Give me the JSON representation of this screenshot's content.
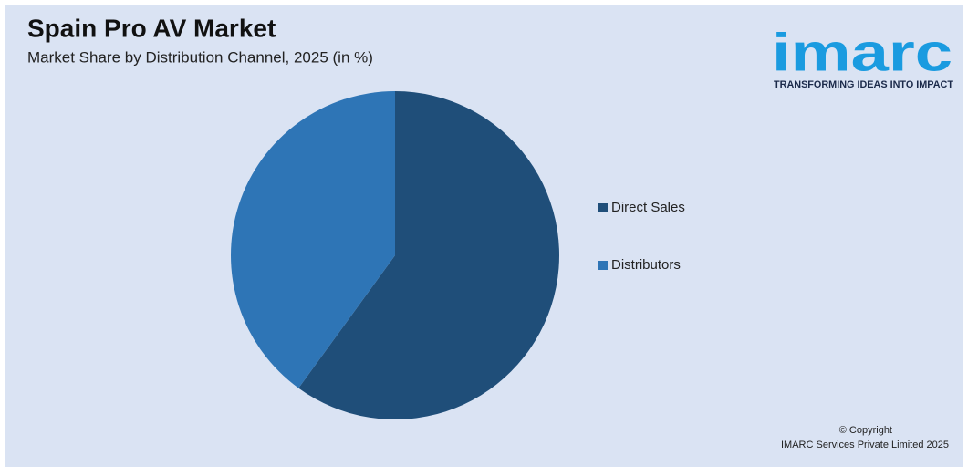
{
  "chart_data": {
    "type": "pie",
    "title": "Spain Pro AV Market",
    "subtitle": "Market Share by Distribution Channel, 2025 (in %)",
    "categories": [
      "Direct Sales",
      "Distributors"
    ],
    "values": [
      60,
      40
    ],
    "colors": [
      "#1f4e79",
      "#2e75b6"
    ],
    "legend": "right"
  },
  "logo": {
    "name": "imarc",
    "tagline": "TRANSFORMING IDEAS INTO IMPACT"
  },
  "footer": {
    "copyright": "© Copyright",
    "company": "IMARC Services Private Limited 2025"
  }
}
